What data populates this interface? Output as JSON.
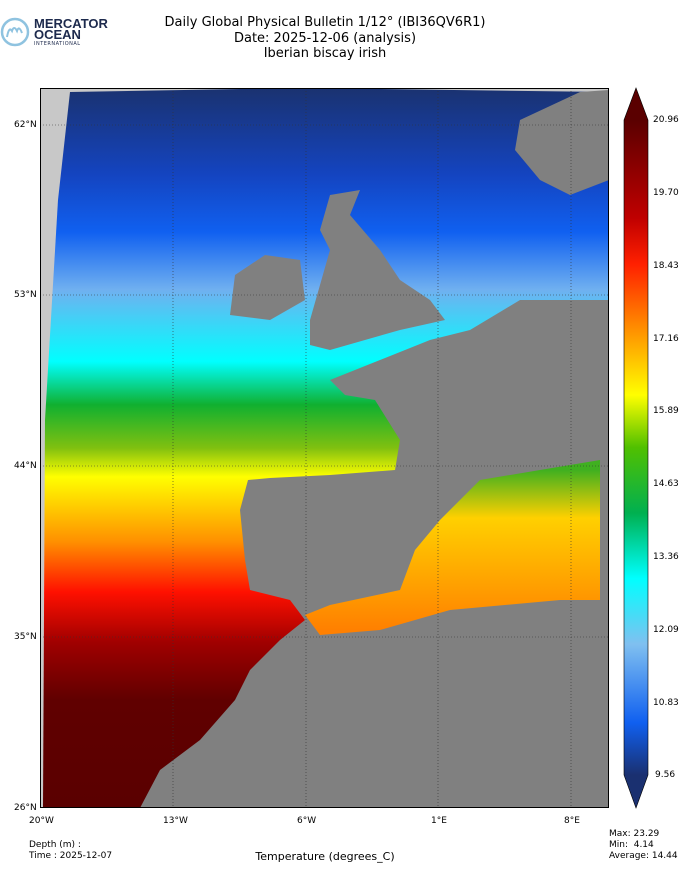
{
  "logo": {
    "line1": "MERCATOR",
    "line2": "OCEAN",
    "line3": "INTERNATIONAL"
  },
  "header": {
    "title": "Daily Global Physical Bulletin 1/12° (IBI36QV6R1)",
    "date": "Date: 2025-12-06 (analysis)",
    "region": "Iberian biscay irish"
  },
  "map": {
    "lon_ticks": [
      "20°W",
      "13°W",
      "6°W",
      "1°E",
      "8°E"
    ],
    "lat_ticks": [
      "62°N",
      "53°N",
      "44°N",
      "35°N",
      "26°N"
    ],
    "land_color": "#808080",
    "nodata_color": "#c8c8c8"
  },
  "colorbar": {
    "ticks": [
      "20.96",
      "19.70",
      "18.43",
      "17.16",
      "15.89",
      "14.63",
      "13.36",
      "12.09",
      "10.83",
      "9.56"
    ],
    "min": 9.56,
    "max": 20.96,
    "colors": [
      "#5a0000",
      "#b00000",
      "#ff2000",
      "#ff9000",
      "#ffff00",
      "#40c000",
      "#00b040",
      "#00ffff",
      "#80c0f0",
      "#1060f0",
      "#1a3070"
    ]
  },
  "footer": {
    "depth": "Depth (m) :",
    "time": "Time : 2025-12-07",
    "variable": "Temperature (degrees_C)",
    "max": "Max: 23.29",
    "min": "Min:  4.14",
    "average": "Average: 14.44"
  }
}
